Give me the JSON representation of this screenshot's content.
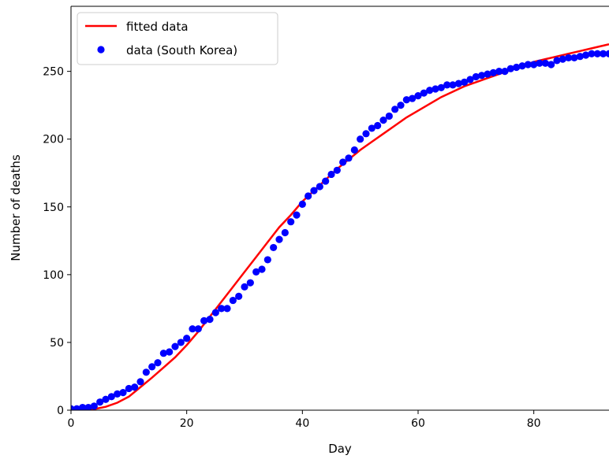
{
  "chart_data": {
    "type": "scatter",
    "title": "",
    "xlabel": "Day",
    "ylabel": "Number of deaths",
    "xlim": [
      0,
      93
    ],
    "ylim": [
      0,
      298
    ],
    "xticks": [
      0,
      20,
      40,
      60,
      80
    ],
    "yticks": [
      0,
      50,
      100,
      150,
      200,
      250
    ],
    "grid": false,
    "legend_position": "top-left",
    "colors": {
      "fit": "#ff0000",
      "data": "#0000ff"
    },
    "series": [
      {
        "name": "fitted data",
        "type": "line",
        "x": [
          0,
          2,
          4,
          6,
          8,
          10,
          12,
          14,
          16,
          18,
          20,
          22,
          24,
          26,
          28,
          30,
          32,
          34,
          36,
          38,
          40,
          42,
          44,
          46,
          48,
          50,
          52,
          54,
          56,
          58,
          60,
          62,
          64,
          66,
          68,
          70,
          72,
          74,
          76,
          78,
          80,
          82,
          84,
          86,
          88,
          90,
          93
        ],
        "y": [
          0,
          0.2,
          0.8,
          2.5,
          5.5,
          10,
          17,
          24,
          31.5,
          39,
          48,
          58,
          69,
          80,
          91,
          102,
          113,
          124,
          135,
          144,
          154,
          162,
          170,
          178,
          185,
          192,
          198,
          204,
          210,
          216,
          221,
          226,
          231,
          235,
          239,
          242,
          245,
          248,
          251,
          254,
          257,
          259,
          261,
          263,
          265,
          267,
          270
        ]
      },
      {
        "name": "data (South Korea)",
        "type": "scatter",
        "x": [
          0,
          1,
          2,
          3,
          4,
          5,
          6,
          7,
          8,
          9,
          10,
          11,
          12,
          13,
          14,
          15,
          16,
          17,
          18,
          19,
          20,
          21,
          22,
          23,
          24,
          25,
          26,
          27,
          28,
          29,
          30,
          31,
          32,
          33,
          34,
          35,
          36,
          37,
          38,
          39,
          40,
          41,
          42,
          43,
          44,
          45,
          46,
          47,
          48,
          49,
          50,
          51,
          52,
          53,
          54,
          55,
          56,
          57,
          58,
          59,
          60,
          61,
          62,
          63,
          64,
          65,
          66,
          67,
          68,
          69,
          70,
          71,
          72,
          73,
          74,
          75,
          76,
          77,
          78,
          79,
          80,
          81,
          82,
          83,
          84,
          85,
          86,
          87,
          88,
          89,
          90,
          91,
          92,
          93
        ],
        "y": [
          1,
          1,
          2,
          2,
          3,
          6,
          8,
          10,
          12,
          13,
          16,
          17,
          21,
          28,
          32,
          35,
          42,
          43,
          47,
          50,
          53,
          60,
          60,
          66,
          67,
          72,
          75,
          75,
          81,
          84,
          91,
          94,
          102,
          104,
          111,
          120,
          126,
          131,
          139,
          144,
          152,
          158,
          162,
          165,
          169,
          174,
          177,
          183,
          186,
          192,
          200,
          204,
          208,
          210,
          214,
          217,
          222,
          225,
          229,
          230,
          232,
          234,
          236,
          237,
          238,
          240,
          240,
          241,
          242,
          244,
          246,
          247,
          248,
          249,
          250,
          250,
          252,
          253,
          254,
          255,
          255,
          256,
          256,
          255,
          258,
          259,
          260,
          260,
          261,
          262,
          263,
          263,
          263,
          263
        ]
      }
    ]
  }
}
